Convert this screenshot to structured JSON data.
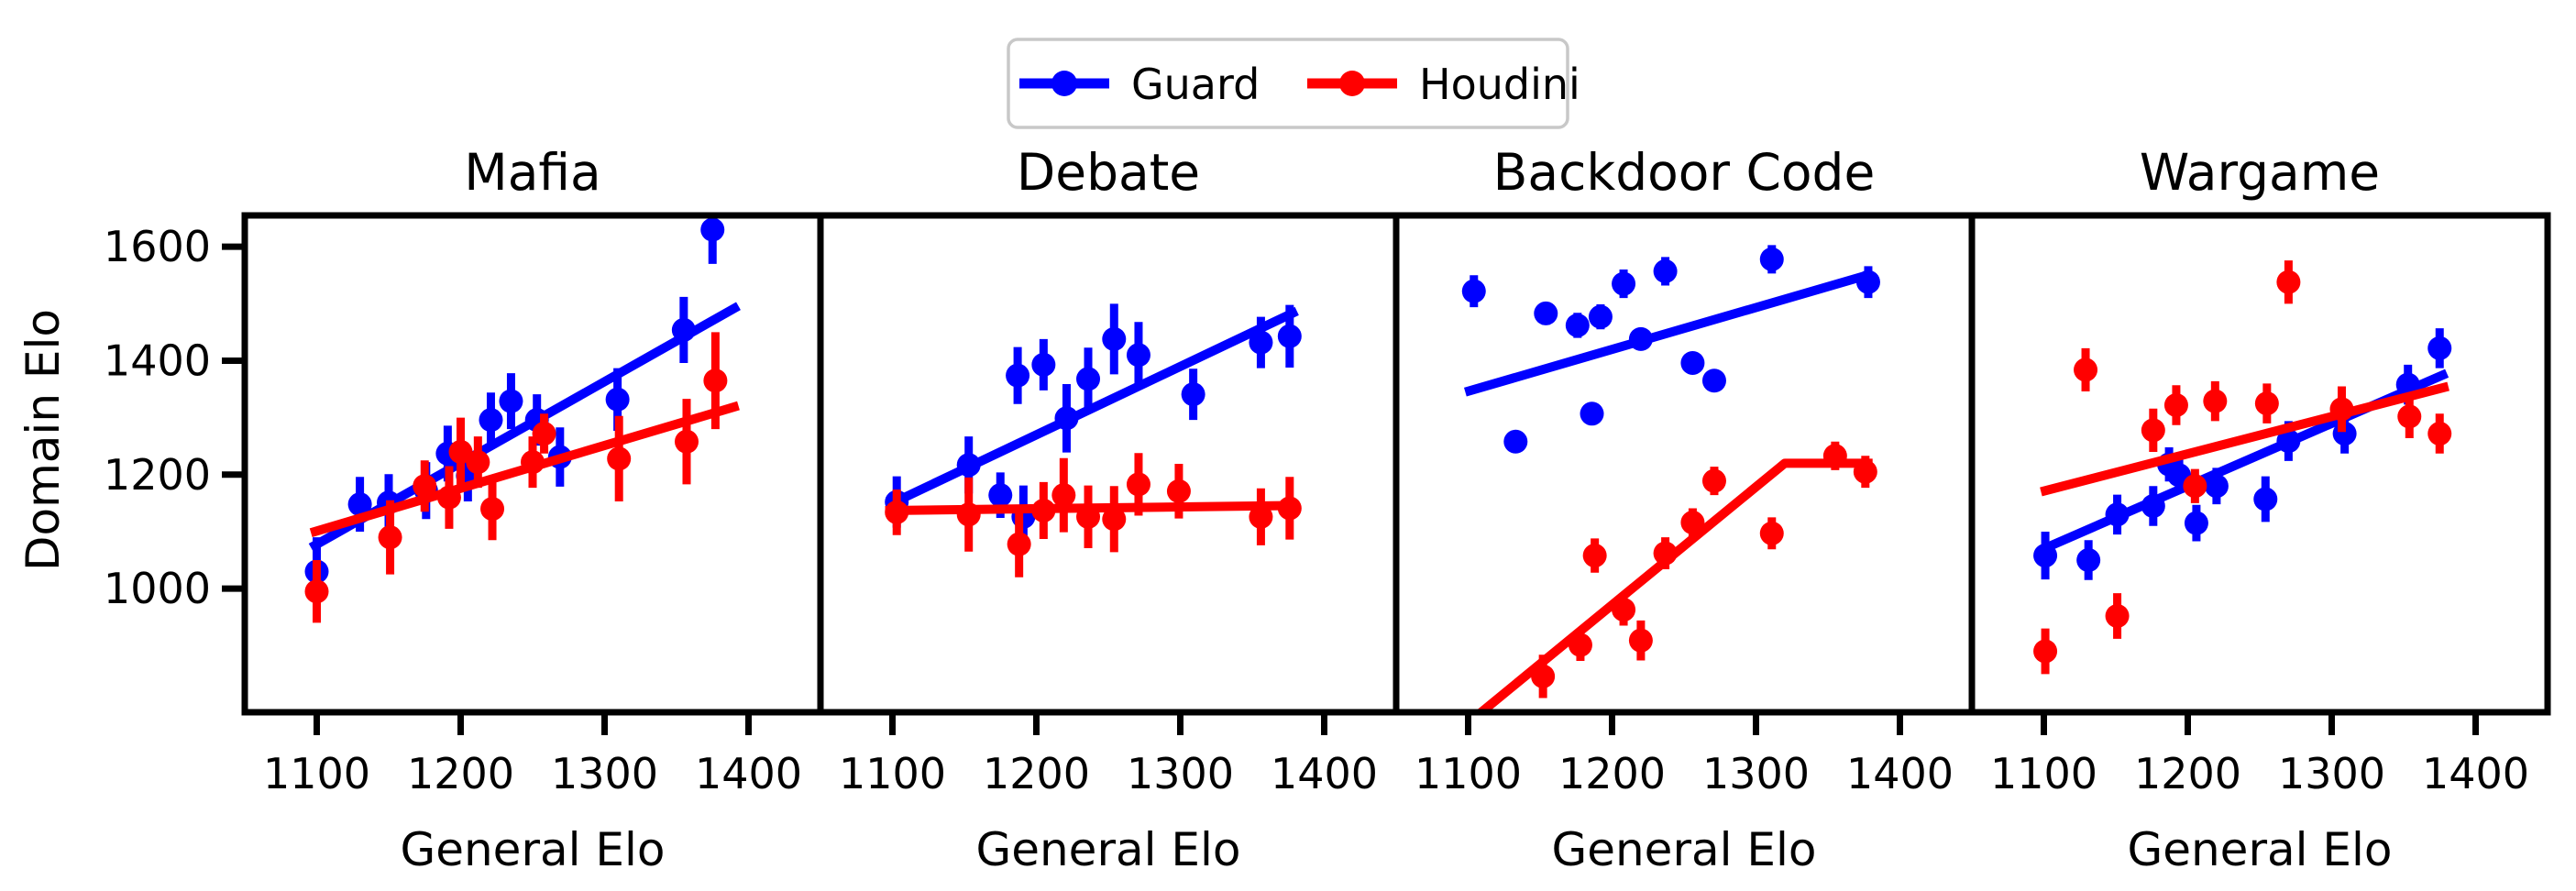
{
  "figure_title": "Guard vs Houdini Domain Elo versus General Elo",
  "styles": {
    "background": "#ffffff",
    "axis_color": "#000000",
    "guard_color": "#0000ff",
    "houdini_color": "#ff0000",
    "legend_border": "#c8c8c8"
  },
  "chart_data": {
    "type": "scatter",
    "xlabel": "General Elo",
    "ylabel": "Domain Elo",
    "xlim": [
      1050,
      1450
    ],
    "ylim": [
      783,
      1655
    ],
    "x_ticks": [
      1100,
      1200,
      1300,
      1400
    ],
    "y_ticks": [
      1000,
      1200,
      1400,
      1600
    ],
    "grid": false,
    "legend": {
      "position": "top-center",
      "entries": [
        {
          "label": "Guard",
          "color": "#0000ff"
        },
        {
          "label": "Houdini",
          "color": "#ff0000"
        }
      ]
    },
    "panels": [
      {
        "title": "Mafia",
        "series": [
          {
            "name": "Guard",
            "color": "#0000ff",
            "points": [
              [
                1100,
                1030,
                60
              ],
              [
                1130,
                1148,
                48
              ],
              [
                1150,
                1151,
                50
              ],
              [
                1176,
                1172,
                50
              ],
              [
                1191,
                1237,
                49
              ],
              [
                1205,
                1198,
                45
              ],
              [
                1221,
                1296,
                48
              ],
              [
                1235,
                1329,
                49
              ],
              [
                1253,
                1296,
                45
              ],
              [
                1269,
                1231,
                52
              ],
              [
                1309,
                1332,
                55
              ],
              [
                1355,
                1454,
                58
              ],
              [
                1375,
                1630,
                60
              ]
            ],
            "trend_line": [
              [
                1096,
                1072
              ],
              [
                1393,
                1496
              ]
            ]
          },
          {
            "name": "Houdini",
            "color": "#ff0000",
            "points": [
              [
                1100,
                995,
                55
              ],
              [
                1151,
                1090,
                65
              ],
              [
                1175,
                1180,
                45
              ],
              [
                1192,
                1160,
                55
              ],
              [
                1200,
                1240,
                60
              ],
              [
                1212,
                1222,
                45
              ],
              [
                1222,
                1140,
                55
              ],
              [
                1250,
                1222,
                45
              ],
              [
                1258,
                1272,
                35
              ],
              [
                1310,
                1228,
                75
              ],
              [
                1357,
                1258,
                75
              ],
              [
                1377,
                1365,
                85
              ]
            ],
            "trend_line": [
              [
                1096,
                1098
              ],
              [
                1393,
                1321
              ]
            ]
          }
        ]
      },
      {
        "title": "Debate",
        "series": [
          {
            "name": "Guard",
            "color": "#0000ff",
            "points": [
              [
                1103,
                1152,
                45
              ],
              [
                1153,
                1217,
                50
              ],
              [
                1175,
                1164,
                40
              ],
              [
                1187,
                1374,
                50
              ],
              [
                1191,
                1126,
                55
              ],
              [
                1205,
                1393,
                45
              ],
              [
                1221,
                1299,
                60
              ],
              [
                1236,
                1368,
                55
              ],
              [
                1254,
                1438,
                62
              ],
              [
                1271,
                1410,
                58
              ],
              [
                1309,
                1341,
                45
              ],
              [
                1356,
                1432,
                45
              ],
              [
                1376,
                1443,
                55
              ]
            ],
            "trend_line": [
              [
                1100,
                1150
              ],
              [
                1381,
                1487
              ]
            ]
          },
          {
            "name": "Houdini",
            "color": "#ff0000",
            "points": [
              [
                1103,
                1134,
                40
              ],
              [
                1153,
                1130,
                65
              ],
              [
                1188,
                1078,
                58
              ],
              [
                1205,
                1137,
                50
              ],
              [
                1219,
                1164,
                65
              ],
              [
                1236,
                1126,
                55
              ],
              [
                1254,
                1122,
                58
              ],
              [
                1271,
                1183,
                55
              ],
              [
                1299,
                1171,
                48
              ],
              [
                1356,
                1126,
                50
              ],
              [
                1376,
                1141,
                55
              ]
            ],
            "trend_line": [
              [
                1095,
                1137
              ],
              [
                1381,
                1146
              ]
            ]
          }
        ]
      },
      {
        "title": "Backdoor Code",
        "series": [
          {
            "name": "Guard",
            "color": "#0000ff",
            "points": [
              [
                1104,
                1522,
                28
              ],
              [
                1133,
                1258,
                12
              ],
              [
                1154,
                1483,
                20
              ],
              [
                1176,
                1462,
                22
              ],
              [
                1186,
                1307,
                12
              ],
              [
                1192,
                1477,
                22
              ],
              [
                1208,
                1535,
                25
              ],
              [
                1220,
                1438,
                15
              ],
              [
                1237,
                1557,
                25
              ],
              [
                1256,
                1396,
                18
              ],
              [
                1271,
                1365,
                15
              ],
              [
                1311,
                1578,
                25
              ],
              [
                1378,
                1538,
                28
              ]
            ],
            "trend_line": [
              [
                1098,
                1345
              ],
              [
                1377,
                1550
              ]
            ]
          },
          {
            "name": "Houdini",
            "color": "#ff0000",
            "points": [
              [
                1152,
                846,
                38
              ],
              [
                1178,
                901,
                28
              ],
              [
                1188,
                1058,
                30
              ],
              [
                1208,
                963,
                28
              ],
              [
                1220,
                909,
                35
              ],
              [
                1237,
                1062,
                28
              ],
              [
                1256,
                1116,
                25
              ],
              [
                1271,
                1189,
                25
              ],
              [
                1311,
                1097,
                28
              ],
              [
                1355,
                1233,
                25
              ],
              [
                1376,
                1205,
                28
              ]
            ],
            "trend_line": [
              [
                1098,
                760
              ],
              [
                1320,
                1220
              ],
              [
                1381,
                1220
              ]
            ]
          }
        ]
      },
      {
        "title": "Wargame",
        "series": [
          {
            "name": "Guard",
            "color": "#0000ff",
            "points": [
              [
                1101,
                1058,
                42
              ],
              [
                1131,
                1050,
                35
              ],
              [
                1151,
                1130,
                35
              ],
              [
                1176,
                1145,
                35
              ],
              [
                1187,
                1218,
                30
              ],
              [
                1194,
                1199,
                30
              ],
              [
                1206,
                1115,
                32
              ],
              [
                1220,
                1180,
                32
              ],
              [
                1254,
                1157,
                40
              ],
              [
                1270,
                1259,
                35
              ],
              [
                1309,
                1272,
                35
              ],
              [
                1353,
                1358,
                35
              ],
              [
                1375,
                1422,
                35
              ]
            ],
            "trend_line": [
              [
                1098,
                1068
              ],
              [
                1380,
                1378
              ]
            ]
          },
          {
            "name": "Houdini",
            "color": "#ff0000",
            "points": [
              [
                1101,
                890,
                40
              ],
              [
                1129,
                1384,
                38
              ],
              [
                1151,
                952,
                40
              ],
              [
                1176,
                1278,
                38
              ],
              [
                1192,
                1322,
                35
              ],
              [
                1205,
                1180,
                30
              ],
              [
                1219,
                1329,
                35
              ],
              [
                1255,
                1325,
                35
              ],
              [
                1270,
                1538,
                38
              ],
              [
                1307,
                1315,
                40
              ],
              [
                1354,
                1302,
                38
              ],
              [
                1375,
                1272,
                35
              ]
            ],
            "trend_line": [
              [
                1098,
                1170
              ],
              [
                1381,
                1355
              ]
            ]
          }
        ]
      }
    ]
  }
}
